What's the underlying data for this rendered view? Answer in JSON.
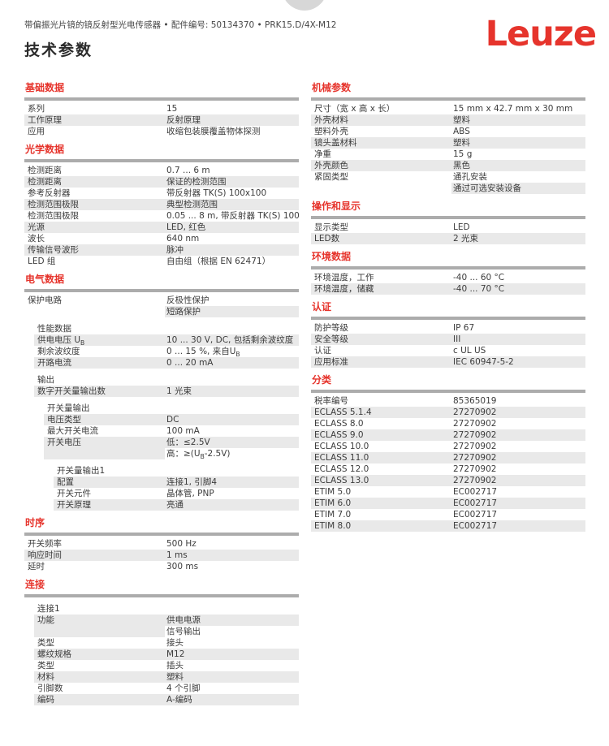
{
  "header": {
    "product_line": "带偏振光片镜的镜反射型光电传感器 • 配件编号: 50134370 • PRK15.D/4X-M12",
    "title": "技术参数",
    "logo": "Leuze"
  },
  "colors": {
    "accent": "#e6342c",
    "stripe": "#e9e9e9",
    "divider_bar": "#acacac",
    "text": "#3c3c3c",
    "circle": "#d7d7d7"
  },
  "columns": {
    "left": [
      {
        "title": "基础数据",
        "blocks": [
          {
            "indent": 0,
            "rows": [
              {
                "label": "系列",
                "values": [
                  "15"
                ]
              },
              {
                "label": "工作原理",
                "values": [
                  "反射原理"
                ]
              },
              {
                "label": "应用",
                "values": [
                  "收缩包装膜覆盖物体探测"
                ]
              }
            ]
          }
        ]
      },
      {
        "title": "光学数据",
        "blocks": [
          {
            "indent": 0,
            "rows": [
              {
                "label": "检测距离",
                "values": [
                  "0.7 ... 6 m"
                ]
              },
              {
                "label": "检测距离",
                "values": [
                  "保证的检测范围"
                ]
              },
              {
                "label": "参考反射器",
                "values": [
                  "带反射器 TK(S) 100x100"
                ]
              },
              {
                "label": "检测范围极限",
                "values": [
                  "典型检测范围"
                ]
              },
              {
                "label": "检测范围极限",
                "values": [
                  "0.05 ... 8 m, 带反射器 TK(S) 100x100"
                ]
              },
              {
                "label": "光源",
                "values": [
                  "LED, 红色"
                ]
              },
              {
                "label": "波长",
                "values": [
                  "640 nm"
                ]
              },
              {
                "label": "传输信号波形",
                "values": [
                  "脉冲"
                ]
              },
              {
                "label": "LED 组",
                "values": [
                  "自由组（根据 EN 62471）"
                ]
              }
            ]
          }
        ]
      },
      {
        "title": "电气数据",
        "blocks": [
          {
            "indent": 0,
            "rows": [
              {
                "label": "保护电路",
                "values": [
                  "反极性保护",
                  "短路保护"
                ]
              }
            ]
          },
          {
            "indent": 1,
            "subtitle": "性能数据",
            "rows": [
              {
                "label": "供电电压 U_{B}",
                "values": [
                  "10 ... 30 V, DC, 包括剩余波纹度"
                ]
              },
              {
                "label": "剩余波纹度",
                "values": [
                  "0 ... 15 %, 来自U_{B}"
                ]
              },
              {
                "label": "开路电流",
                "values": [
                  "0 ... 20 mA"
                ]
              }
            ]
          },
          {
            "indent": 1,
            "subtitle": "输出",
            "rows": [
              {
                "label": "数字开关量输出数",
                "values": [
                  "1 光束"
                ]
              }
            ]
          },
          {
            "indent": 2,
            "subtitle": "开关量输出",
            "rows": [
              {
                "label": "电压类型",
                "values": [
                  "DC"
                ]
              },
              {
                "label": "最大开关电流",
                "values": [
                  "100 mA"
                ]
              },
              {
                "label": "开关电压",
                "values": [
                  "低：≤2.5V",
                  "高：≥(U_{B}-2.5V)"
                ]
              }
            ]
          },
          {
            "indent": 3,
            "subtitle": "开关量输出1",
            "rows": [
              {
                "label": "配置",
                "values": [
                  "连接1, 引脚4"
                ]
              },
              {
                "label": "开关元件",
                "values": [
                  "晶体管, PNP"
                ]
              },
              {
                "label": "开关原理",
                "values": [
                  "亮通"
                ]
              }
            ]
          }
        ]
      },
      {
        "title": "时序",
        "blocks": [
          {
            "indent": 0,
            "rows": [
              {
                "label": "开关频率",
                "values": [
                  "500 Hz"
                ]
              },
              {
                "label": "响应时间",
                "values": [
                  "1 ms"
                ]
              },
              {
                "label": "延时",
                "values": [
                  "300 ms"
                ]
              }
            ]
          }
        ]
      },
      {
        "title": "连接",
        "blocks": [
          {
            "indent": 1,
            "subtitle": "连接1",
            "rows": [
              {
                "label": "功能",
                "values": [
                  "供电电源",
                  "信号输出"
                ]
              },
              {
                "label": "类型",
                "values": [
                  "接头"
                ]
              },
              {
                "label": "螺纹规格",
                "values": [
                  "M12"
                ]
              },
              {
                "label": "类型",
                "values": [
                  "插头"
                ]
              },
              {
                "label": "材料",
                "values": [
                  "塑料"
                ]
              },
              {
                "label": "引脚数",
                "values": [
                  "4 个引脚"
                ]
              },
              {
                "label": "编码",
                "values": [
                  "A-编码"
                ]
              }
            ]
          }
        ]
      }
    ],
    "right": [
      {
        "title": "机械参数",
        "blocks": [
          {
            "indent": 0,
            "rows": [
              {
                "label": "尺寸（宽 x 高 x 长）",
                "values": [
                  "15 mm x 42.7 mm x 30 mm"
                ]
              },
              {
                "label": "外壳材料",
                "values": [
                  "塑料"
                ]
              },
              {
                "label": "塑料外壳",
                "values": [
                  "ABS"
                ]
              },
              {
                "label": "镜头盖材料",
                "values": [
                  "塑料"
                ]
              },
              {
                "label": "净重",
                "values": [
                  "15 g"
                ]
              },
              {
                "label": "外壳颜色",
                "values": [
                  "黑色"
                ]
              },
              {
                "label": "紧固类型",
                "values": [
                  "通孔安装",
                  "通过可选安装设备"
                ]
              }
            ]
          }
        ]
      },
      {
        "title": "操作和显示",
        "blocks": [
          {
            "indent": 0,
            "rows": [
              {
                "label": "显示类型",
                "values": [
                  "LED"
                ]
              },
              {
                "label": "LED数",
                "values": [
                  "2 光束"
                ]
              }
            ]
          }
        ]
      },
      {
        "title": "环境数据",
        "blocks": [
          {
            "indent": 0,
            "rows": [
              {
                "label": "环境温度，工作",
                "values": [
                  "-40 ... 60 °C"
                ]
              },
              {
                "label": "环境温度，储藏",
                "values": [
                  "-40 ... 70 °C"
                ]
              }
            ]
          }
        ]
      },
      {
        "title": "认证",
        "blocks": [
          {
            "indent": 0,
            "rows": [
              {
                "label": "防护等级",
                "values": [
                  "IP 67"
                ]
              },
              {
                "label": "安全等级",
                "values": [
                  "III"
                ]
              },
              {
                "label": "认证",
                "values": [
                  "c UL US"
                ]
              },
              {
                "label": "应用标准",
                "values": [
                  "IEC 60947-5-2"
                ]
              }
            ]
          }
        ]
      },
      {
        "title": "分类",
        "blocks": [
          {
            "indent": 0,
            "rows": [
              {
                "label": "税率编号",
                "values": [
                  "85365019"
                ]
              },
              {
                "label": "ECLASS 5.1.4",
                "values": [
                  "27270902"
                ]
              },
              {
                "label": "ECLASS 8.0",
                "values": [
                  "27270902"
                ]
              },
              {
                "label": "ECLASS 9.0",
                "values": [
                  "27270902"
                ]
              },
              {
                "label": "ECLASS 10.0",
                "values": [
                  "27270902"
                ]
              },
              {
                "label": "ECLASS 11.0",
                "values": [
                  "27270902"
                ]
              },
              {
                "label": "ECLASS 12.0",
                "values": [
                  "27270902"
                ]
              },
              {
                "label": "ECLASS 13.0",
                "values": [
                  "27270902"
                ]
              },
              {
                "label": "ETIM 5.0",
                "values": [
                  "EC002717"
                ]
              },
              {
                "label": "ETIM 6.0",
                "values": [
                  "EC002717"
                ]
              },
              {
                "label": "ETIM 7.0",
                "values": [
                  "EC002717"
                ]
              },
              {
                "label": "ETIM 8.0",
                "values": [
                  "EC002717"
                ]
              }
            ]
          }
        ]
      }
    ]
  }
}
